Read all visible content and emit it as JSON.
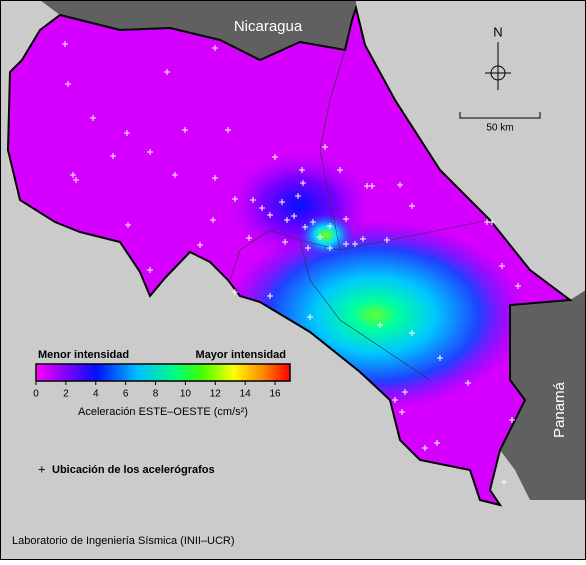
{
  "map": {
    "countries": [
      "Nicaragua",
      "Panamá"
    ],
    "north": "N",
    "scale": "50 km",
    "legend": {
      "low": "Menor intensidad",
      "high": "Mayor intensidad",
      "colorbar": {
        "range": [
          0,
          17
        ],
        "ticks": [
          0,
          2,
          4,
          6,
          8,
          10,
          12,
          14,
          16
        ]
      },
      "axis_label": "Aceleración ESTE–OESTE (cm/s²)",
      "marker": "Ubicación de los acelerógrafos"
    },
    "credit": "Laboratorio de Ingeniería Sísmica (INII–UCR)"
  }
}
